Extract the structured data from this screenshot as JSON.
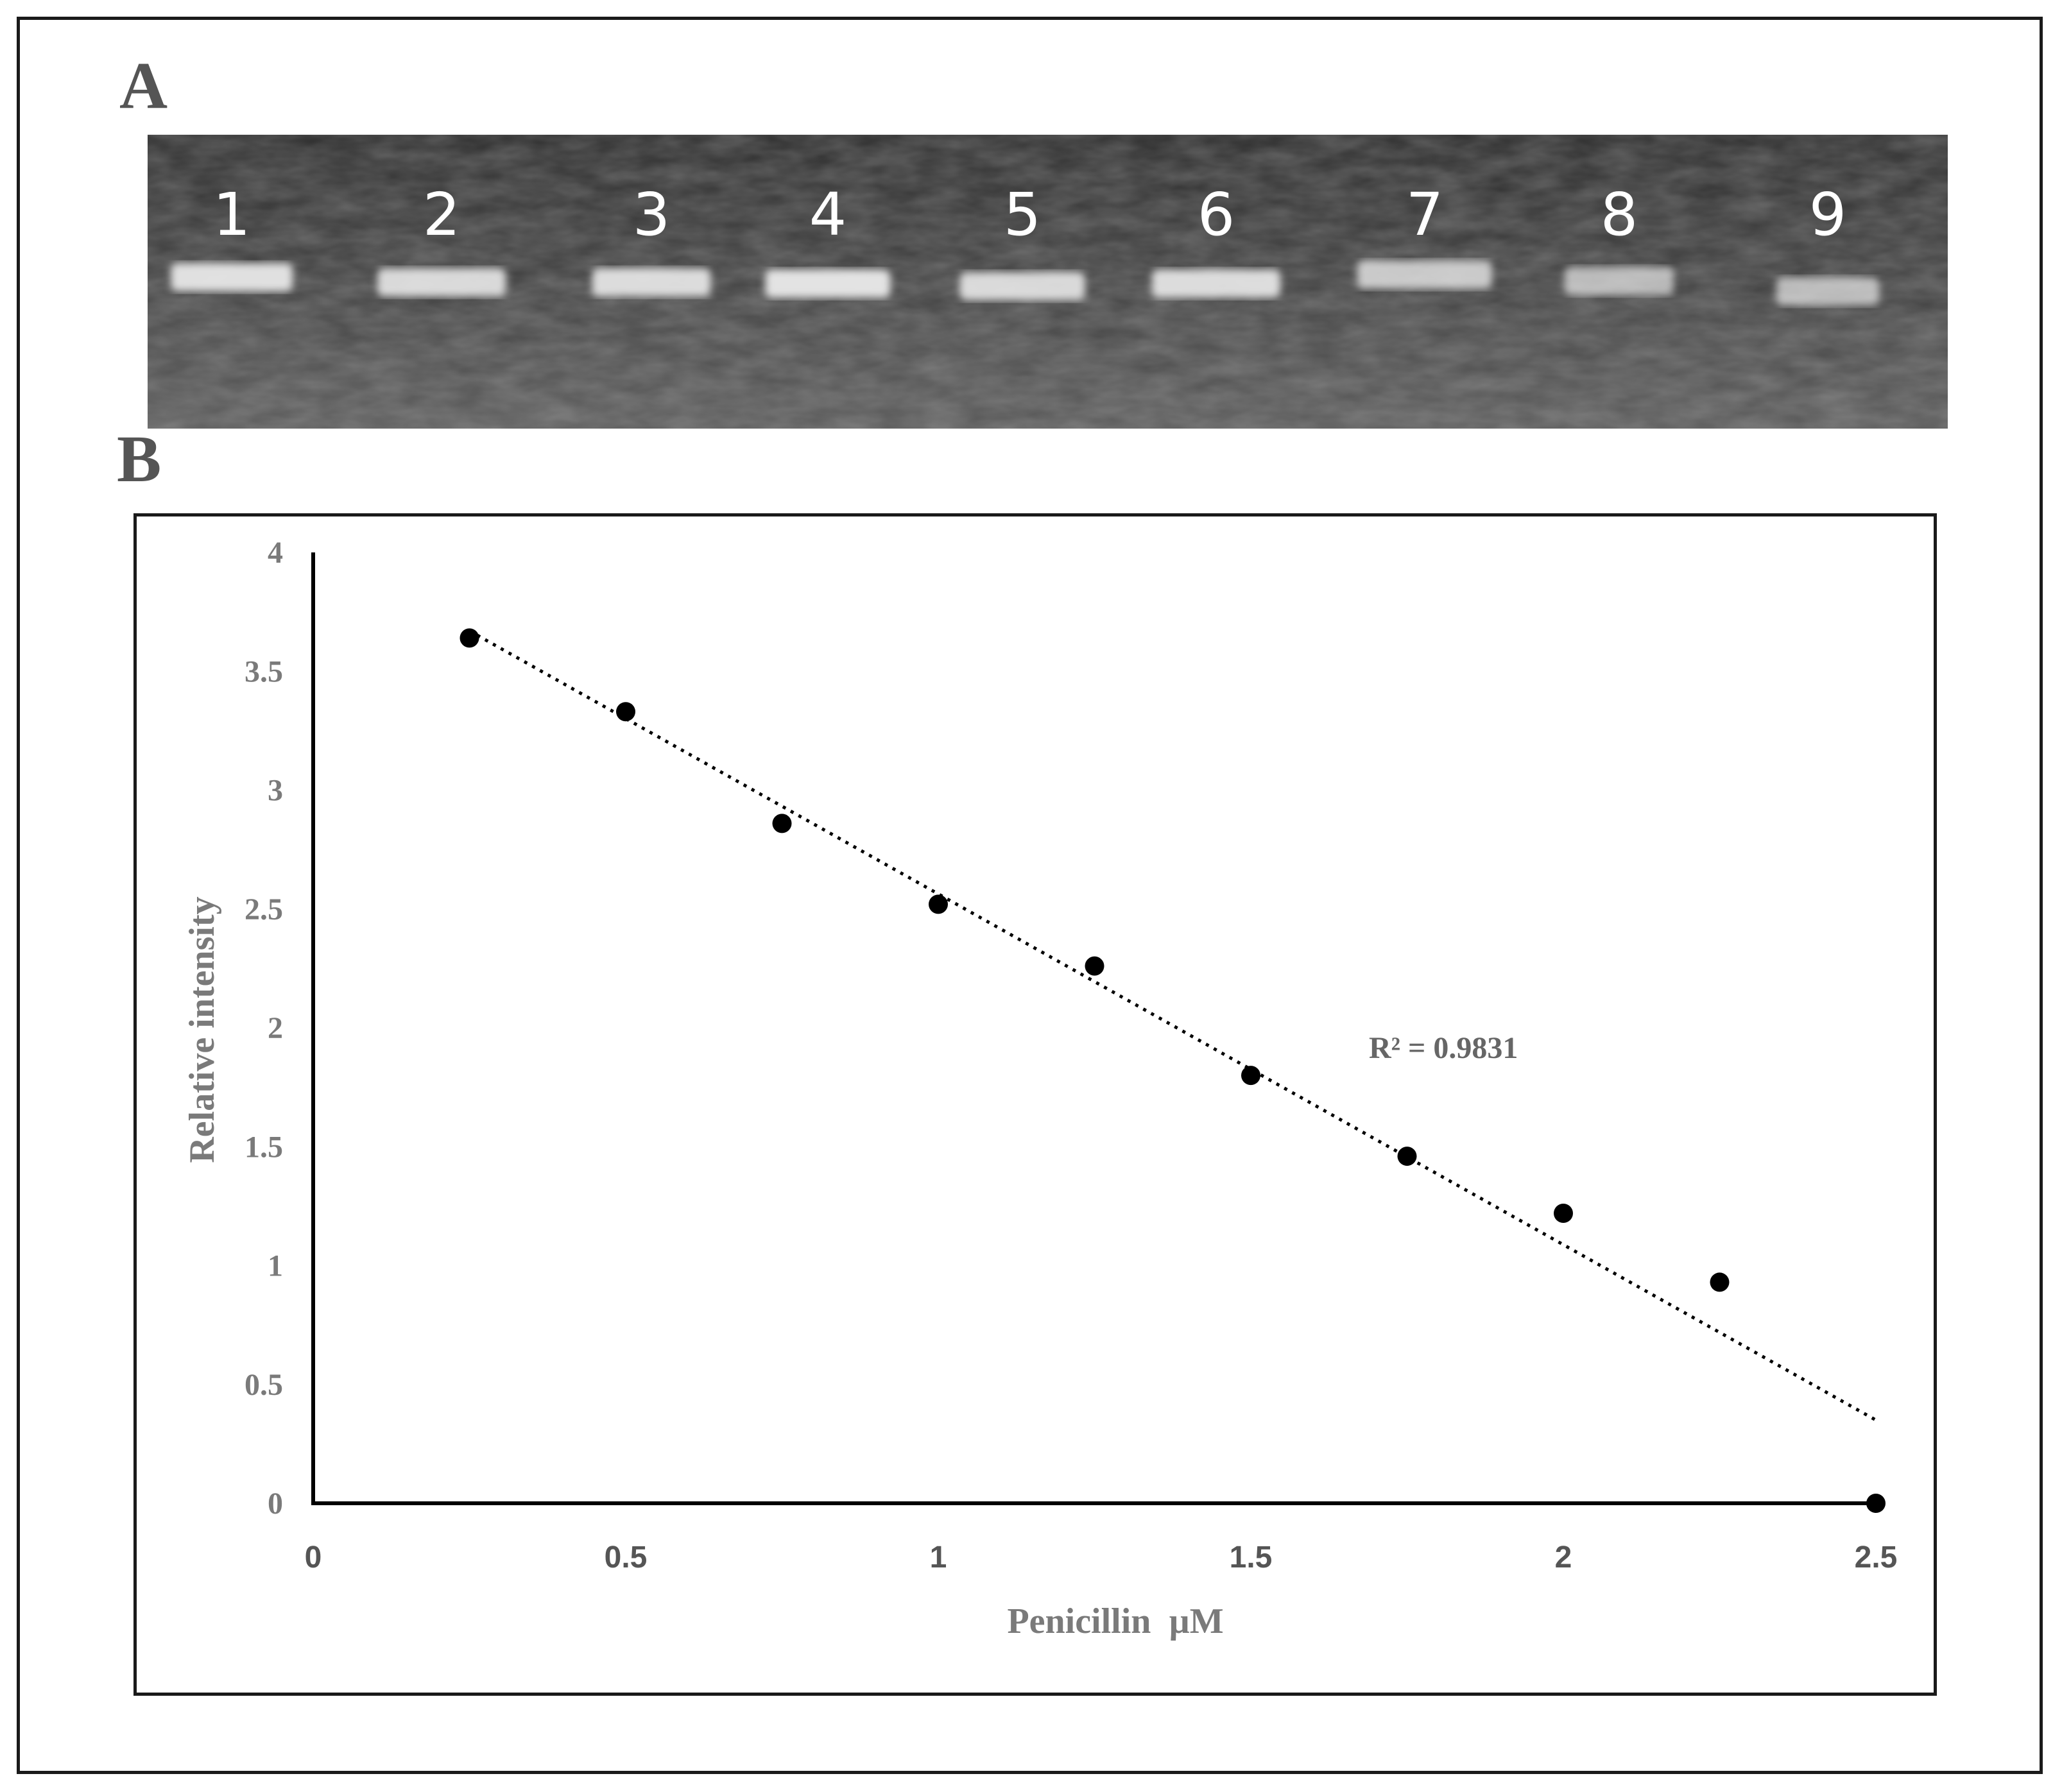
{
  "panel_a": {
    "label": "A",
    "lanes": [
      "1",
      "2",
      "3",
      "4",
      "5",
      "6",
      "7",
      "8",
      "9"
    ],
    "gel_background": "#3a3a3a",
    "band_color": "#e8e8e8"
  },
  "panel_b": {
    "label": "B"
  },
  "chart_data": {
    "type": "scatter",
    "title": "",
    "xlabel": "Penicillin  µM",
    "ylabel": "Relative intensity",
    "xlim": [
      0,
      2.5
    ],
    "ylim": [
      0,
      4
    ],
    "x_ticks": [
      "0",
      "0.5",
      "1",
      "1.5",
      "2",
      "2.5"
    ],
    "y_ticks": [
      "0",
      "0.5",
      "1",
      "1.5",
      "2",
      "2.5",
      "3",
      "3.5",
      "4"
    ],
    "grid": false,
    "legend": "none",
    "series": [
      {
        "points": [
          {
            "x": 0.25,
            "y": 3.64
          },
          {
            "x": 0.5,
            "y": 3.33
          },
          {
            "x": 0.75,
            "y": 2.86
          },
          {
            "x": 1.0,
            "y": 2.52
          },
          {
            "x": 1.25,
            "y": 2.26
          },
          {
            "x": 1.5,
            "y": 1.8
          },
          {
            "x": 1.75,
            "y": 1.46
          },
          {
            "x": 2.0,
            "y": 1.22
          },
          {
            "x": 2.25,
            "y": 0.93
          },
          {
            "x": 2.5,
            "y": 0.0
          }
        ],
        "color": "#000000"
      }
    ],
    "trendline": {
      "style": "dotted",
      "start": {
        "x": 0.25,
        "y": 3.67
      },
      "end": {
        "x": 2.5,
        "y": 0.35
      },
      "annotation": "R² = 0.9831"
    }
  }
}
